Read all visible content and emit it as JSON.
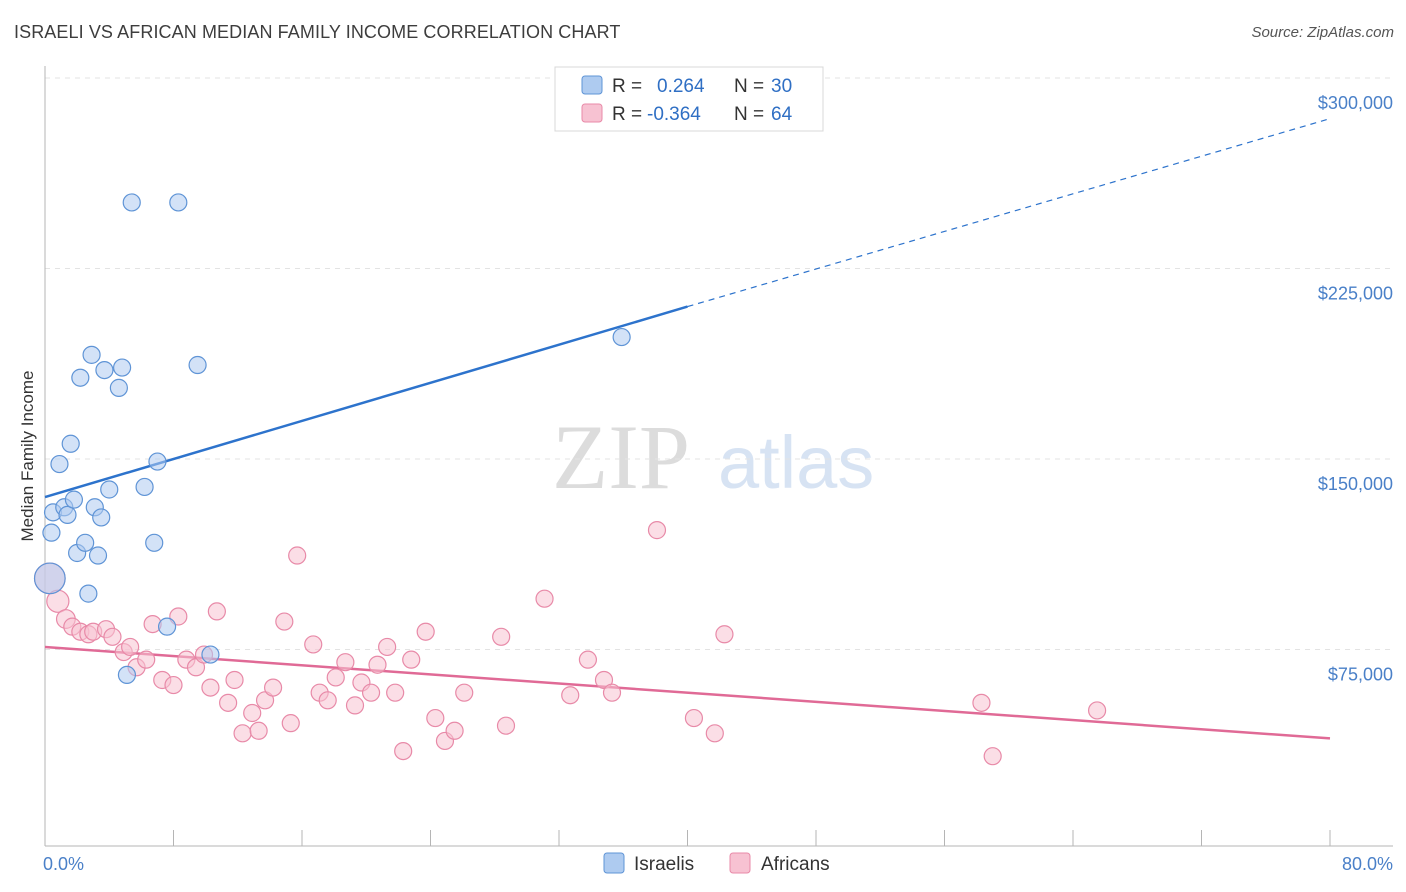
{
  "title": "ISRAELI VS AFRICAN MEDIAN FAMILY INCOME CORRELATION CHART",
  "source": "Source: ZipAtlas.com",
  "watermark": {
    "zip": "ZIP",
    "atlas": "atlas"
  },
  "colors": {
    "israelis_fill": "#aecbf0",
    "israelis_stroke": "#5f94d6",
    "israelis_line": "#2d73cc",
    "africans_fill": "#f7c2d2",
    "africans_stroke": "#e88aa8",
    "africans_line": "#e06a96",
    "tick_text": "#4a80c8",
    "grid": "#e3e3e3"
  },
  "legend": {
    "rows": [
      {
        "r_label": "R = ",
        "r_value": "0.264",
        "n_label": "N = ",
        "n_value": "30"
      },
      {
        "r_label": "R = ",
        "r_value": "-0.364",
        "n_label": "N = ",
        "n_value": "64"
      }
    ]
  },
  "chart_data": {
    "type": "scatter",
    "title": "ISRAELI VS AFRICAN MEDIAN FAMILY INCOME CORRELATION CHART",
    "xlabel": "",
    "ylabel": "Median Family Income",
    "xlim": [
      0,
      80
    ],
    "ylim": [
      0,
      300000
    ],
    "x_tick_labels": [
      "0.0%",
      "80.0%"
    ],
    "y_ticks": [
      75000,
      150000,
      225000,
      300000
    ],
    "y_tick_labels": [
      "$75,000",
      "$150,000",
      "$225,000",
      "$300,000"
    ],
    "series": [
      {
        "name": "Israelis",
        "r": 0.264,
        "n": 30,
        "trend": {
          "x0": 0,
          "y0": 135000,
          "x1": 40,
          "y1": 210000,
          "dash_x1": 80,
          "dash_y1": 284000
        },
        "points": [
          [
            0.3,
            103000,
            1.8
          ],
          [
            0.4,
            121000,
            1
          ],
          [
            0.5,
            129000,
            1
          ],
          [
            0.9,
            148000,
            1
          ],
          [
            1.2,
            131000,
            1
          ],
          [
            1.4,
            128000,
            1
          ],
          [
            1.6,
            156000,
            1
          ],
          [
            1.8,
            134000,
            1
          ],
          [
            2.0,
            113000,
            1
          ],
          [
            2.2,
            182000,
            1
          ],
          [
            2.5,
            117000,
            1
          ],
          [
            2.7,
            97000,
            1
          ],
          [
            2.9,
            191000,
            1
          ],
          [
            3.1,
            131000,
            1
          ],
          [
            3.3,
            112000,
            1
          ],
          [
            3.5,
            127000,
            1
          ],
          [
            3.7,
            185000,
            1
          ],
          [
            4.0,
            138000,
            1
          ],
          [
            4.6,
            178000,
            1
          ],
          [
            4.8,
            186000,
            1
          ],
          [
            5.1,
            65000,
            1
          ],
          [
            5.4,
            251000,
            1
          ],
          [
            6.2,
            139000,
            1
          ],
          [
            6.8,
            117000,
            1
          ],
          [
            7.0,
            149000,
            1
          ],
          [
            7.6,
            84000,
            1
          ],
          [
            8.3,
            251000,
            1
          ],
          [
            9.5,
            187000,
            1
          ],
          [
            10.3,
            73000,
            1
          ],
          [
            35.9,
            198000,
            1
          ]
        ]
      },
      {
        "name": "Africans",
        "r": -0.364,
        "n": 64,
        "trend": {
          "x0": 0,
          "y0": 76000,
          "x1": 80,
          "y1": 40000
        },
        "points": [
          [
            0.3,
            103000,
            1.8
          ],
          [
            0.8,
            94000,
            1.3
          ],
          [
            1.3,
            87000,
            1.1
          ],
          [
            1.7,
            84000,
            1
          ],
          [
            2.2,
            82000,
            1
          ],
          [
            2.7,
            81000,
            1
          ],
          [
            3.0,
            82000,
            1
          ],
          [
            3.8,
            83000,
            1
          ],
          [
            4.2,
            80000,
            1
          ],
          [
            4.9,
            74000,
            1
          ],
          [
            5.3,
            76000,
            1
          ],
          [
            5.7,
            68000,
            1
          ],
          [
            6.3,
            71000,
            1
          ],
          [
            6.7,
            85000,
            1
          ],
          [
            7.3,
            63000,
            1
          ],
          [
            8.0,
            61000,
            1
          ],
          [
            8.3,
            88000,
            1
          ],
          [
            8.8,
            71000,
            1
          ],
          [
            9.4,
            68000,
            1
          ],
          [
            9.9,
            73000,
            1
          ],
          [
            10.3,
            60000,
            1
          ],
          [
            10.7,
            90000,
            1
          ],
          [
            11.4,
            54000,
            1
          ],
          [
            11.8,
            63000,
            1
          ],
          [
            12.3,
            42000,
            1
          ],
          [
            12.9,
            50000,
            1
          ],
          [
            13.3,
            43000,
            1
          ],
          [
            13.7,
            55000,
            1
          ],
          [
            14.2,
            60000,
            1
          ],
          [
            14.9,
            86000,
            1
          ],
          [
            15.3,
            46000,
            1
          ],
          [
            15.7,
            112000,
            1
          ],
          [
            16.7,
            77000,
            1
          ],
          [
            17.1,
            58000,
            1
          ],
          [
            17.6,
            55000,
            1
          ],
          [
            18.1,
            64000,
            1
          ],
          [
            18.7,
            70000,
            1
          ],
          [
            19.3,
            53000,
            1
          ],
          [
            19.7,
            62000,
            1
          ],
          [
            20.3,
            58000,
            1
          ],
          [
            20.7,
            69000,
            1
          ],
          [
            21.3,
            76000,
            1
          ],
          [
            21.8,
            58000,
            1
          ],
          [
            22.3,
            35000,
            1
          ],
          [
            22.8,
            71000,
            1
          ],
          [
            23.7,
            82000,
            1
          ],
          [
            24.3,
            48000,
            1
          ],
          [
            24.9,
            39000,
            1
          ],
          [
            25.5,
            43000,
            1
          ],
          [
            26.1,
            58000,
            1
          ],
          [
            28.4,
            80000,
            1
          ],
          [
            28.7,
            45000,
            1
          ],
          [
            31.1,
            95000,
            1
          ],
          [
            32.7,
            57000,
            1
          ],
          [
            33.8,
            71000,
            1
          ],
          [
            34.8,
            63000,
            1
          ],
          [
            35.3,
            58000,
            1
          ],
          [
            38.1,
            122000,
            1
          ],
          [
            40.4,
            48000,
            1
          ],
          [
            41.7,
            42000,
            1
          ],
          [
            42.3,
            81000,
            1
          ],
          [
            58.3,
            54000,
            1
          ],
          [
            59.0,
            33000,
            1
          ],
          [
            65.5,
            51000,
            1
          ]
        ]
      }
    ]
  }
}
